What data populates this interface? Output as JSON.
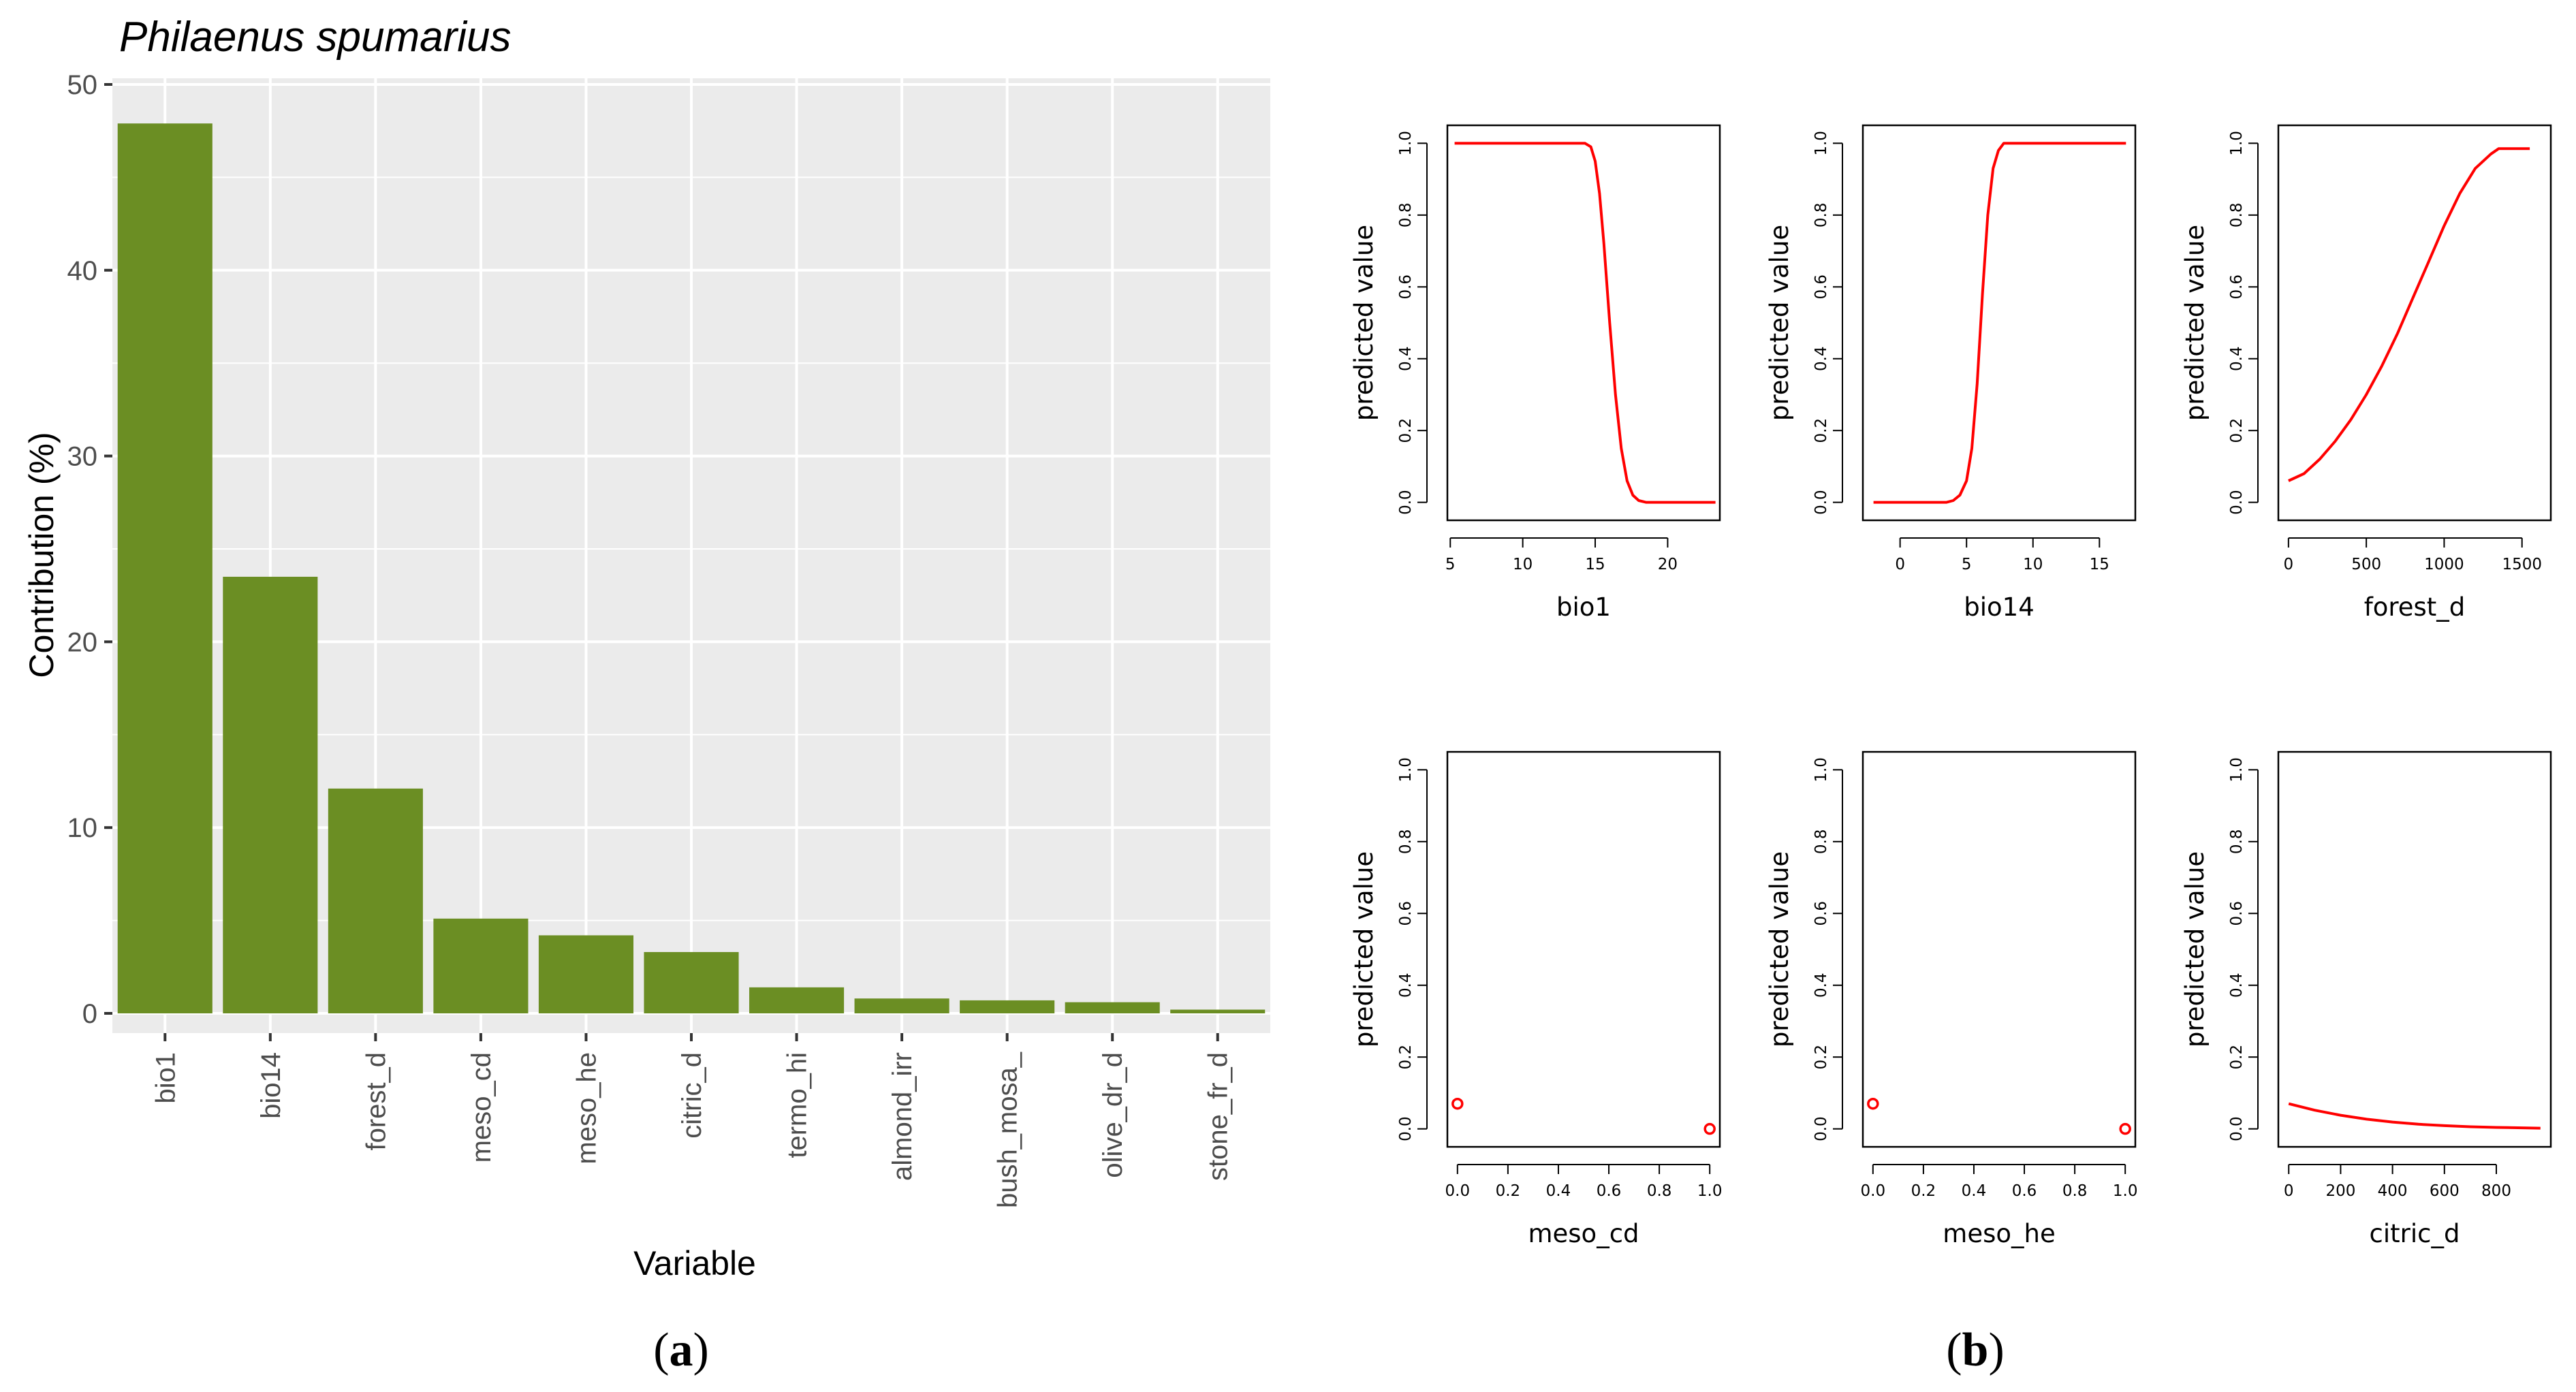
{
  "colors": {
    "bar": "#6b8e23",
    "panel_bg": "#ebebeb",
    "grid": "#ffffff",
    "curve": "#ff0000"
  },
  "panel_labels": {
    "a_open": "(",
    "a_letter": "a",
    "a_close": ")",
    "b_open": "(",
    "b_letter": "b",
    "b_close": ")"
  },
  "chart_data": [
    {
      "type": "bar",
      "title": "Philaenus spumarius",
      "xlabel": "Variable",
      "ylabel": "Contribution (%)",
      "ylim": [
        0,
        50
      ],
      "yticks": [
        0,
        10,
        20,
        30,
        40,
        50
      ],
      "grid": true,
      "categories": [
        "bio1",
        "bio14",
        "forest_d",
        "meso_cd",
        "meso_he",
        "citric_d",
        "termo_hi",
        "almond_irr",
        "bush_mosa_",
        "olive_dr_d",
        "stone_fr_d"
      ],
      "values": [
        47.9,
        23.5,
        12.1,
        5.1,
        4.2,
        3.3,
        1.4,
        0.8,
        0.7,
        0.6,
        0.2
      ]
    },
    {
      "type": "line",
      "xlabel": "bio1",
      "ylabel": "predicted value",
      "xlim": [
        4.8,
        23.6
      ],
      "ylim": [
        -0.05,
        1.05
      ],
      "xticks": [
        5,
        10,
        15,
        20
      ],
      "yticks": [
        0.0,
        0.2,
        0.4,
        0.6,
        0.8,
        1.0
      ],
      "x": [
        5.3,
        8,
        10,
        12,
        13.5,
        14.3,
        14.7,
        15.0,
        15.3,
        15.6,
        16.0,
        16.4,
        16.8,
        17.2,
        17.6,
        18.0,
        18.5,
        19.0,
        20,
        22,
        23.3
      ],
      "y": [
        1.0,
        1.0,
        1.0,
        1.0,
        1.0,
        1.0,
        0.99,
        0.95,
        0.86,
        0.72,
        0.5,
        0.3,
        0.15,
        0.06,
        0.02,
        0.005,
        0.0,
        0.0,
        0.0,
        0.0,
        0.0
      ]
    },
    {
      "type": "line",
      "xlabel": "bio14",
      "ylabel": "predicted value",
      "xlim": [
        -2.8,
        17.7
      ],
      "ylim": [
        -0.05,
        1.05
      ],
      "xticks": [
        0,
        5,
        10,
        15
      ],
      "yticks": [
        0.0,
        0.2,
        0.4,
        0.6,
        0.8,
        1.0
      ],
      "x": [
        -2.0,
        0,
        2,
        3.5,
        4.0,
        4.5,
        5.0,
        5.4,
        5.8,
        6.2,
        6.6,
        7.0,
        7.4,
        7.8,
        8.5,
        10,
        12,
        14,
        17.0
      ],
      "y": [
        0.0,
        0.0,
        0.0,
        0.0,
        0.005,
        0.02,
        0.06,
        0.15,
        0.33,
        0.58,
        0.8,
        0.93,
        0.98,
        1.0,
        1.0,
        1.0,
        1.0,
        1.0,
        1.0
      ]
    },
    {
      "type": "line",
      "xlabel": "forest_d",
      "ylabel": "predicted value",
      "xlim": [
        -65,
        1685
      ],
      "ylim": [
        -0.05,
        1.05
      ],
      "xticks": [
        0,
        500,
        1000,
        1500
      ],
      "yticks": [
        0.0,
        0.2,
        0.4,
        0.6,
        0.8,
        1.0
      ],
      "x": [
        0,
        100,
        200,
        300,
        400,
        500,
        600,
        700,
        800,
        900,
        1000,
        1100,
        1200,
        1300,
        1350,
        1400,
        1500,
        1550
      ],
      "y": [
        0.06,
        0.08,
        0.12,
        0.17,
        0.23,
        0.3,
        0.38,
        0.47,
        0.57,
        0.67,
        0.77,
        0.86,
        0.93,
        0.97,
        0.985,
        0.985,
        0.985,
        0.985
      ]
    },
    {
      "type": "scatter",
      "xlabel": "meso_cd",
      "ylabel": "predicted value",
      "xlim": [
        -0.04,
        1.04
      ],
      "ylim": [
        -0.05,
        1.05
      ],
      "xticks": [
        0.0,
        0.2,
        0.4,
        0.6,
        0.8,
        1.0
      ],
      "yticks": [
        0.0,
        0.2,
        0.4,
        0.6,
        0.8,
        1.0
      ],
      "x": [
        0,
        1
      ],
      "y": [
        0.07,
        0.0
      ]
    },
    {
      "type": "scatter",
      "xlabel": "meso_he",
      "ylabel": "predicted value",
      "xlim": [
        -0.04,
        1.04
      ],
      "ylim": [
        -0.05,
        1.05
      ],
      "xticks": [
        0.0,
        0.2,
        0.4,
        0.6,
        0.8,
        1.0
      ],
      "yticks": [
        0.0,
        0.2,
        0.4,
        0.6,
        0.8,
        1.0
      ],
      "x": [
        0,
        1
      ],
      "y": [
        0.07,
        0.0
      ]
    },
    {
      "type": "line",
      "xlabel": "citric_d",
      "ylabel": "predicted value",
      "xlim": [
        -40,
        1010
      ],
      "ylim": [
        -0.05,
        1.05
      ],
      "xticks": [
        0,
        200,
        400,
        600,
        800
      ],
      "yticks": [
        0.0,
        0.2,
        0.4,
        0.6,
        0.8,
        1.0
      ],
      "x": [
        0,
        100,
        200,
        300,
        400,
        500,
        600,
        700,
        800,
        900,
        970
      ],
      "y": [
        0.07,
        0.052,
        0.038,
        0.027,
        0.019,
        0.013,
        0.009,
        0.006,
        0.004,
        0.003,
        0.002
      ]
    }
  ]
}
